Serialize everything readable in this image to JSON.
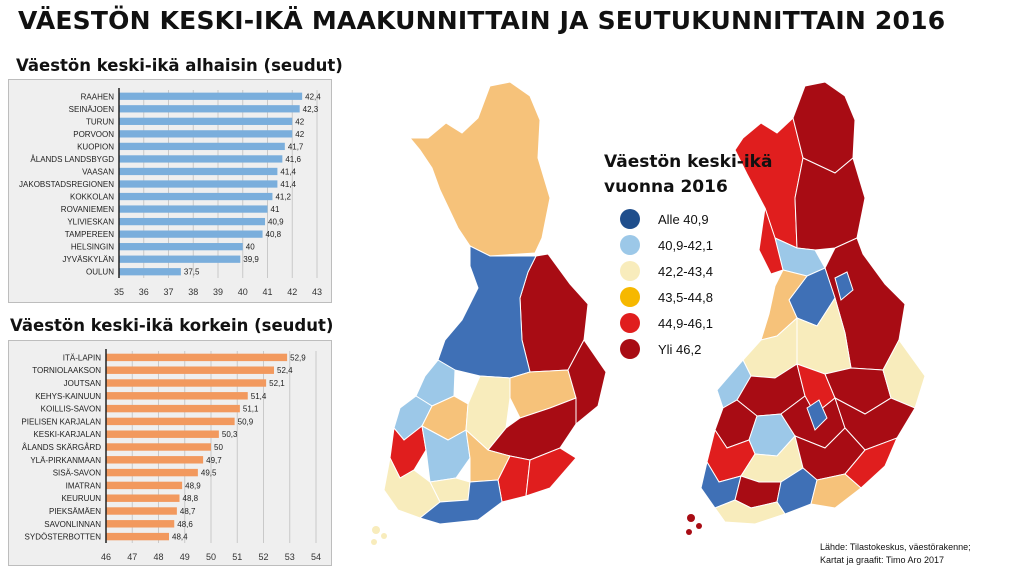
{
  "title": "VÄESTÖN KESKI-IKÄ MAAKUNNITTAIN JA SEUTUKUNNITTAIN 2016",
  "chart_data": [
    {
      "type": "bar",
      "orientation": "horizontal",
      "title": "Väestön keski-ikä alhaisin (seudut)",
      "categories": [
        "RAAHEN",
        "SEINÄJOEN",
        "TURUN",
        "PORVOON",
        "KUOPION",
        "ÅLANDS LANDSBYGD",
        "VAASAN",
        "JAKOBSTADSREGIONEN",
        "KOKKOLAN",
        "ROVANIEMEN",
        "YLIVIESKAN",
        "TAMPEREEN",
        "HELSINGIN",
        "JYVÄSKYLÄN",
        "OULUN"
      ],
      "values": [
        42.4,
        42.3,
        42,
        42,
        41.7,
        41.6,
        41.4,
        41.4,
        41.2,
        41,
        40.9,
        40.8,
        40,
        39.9,
        37.5
      ],
      "value_labels": [
        "42,4",
        "42,3",
        "42",
        "42",
        "41,7",
        "41,6",
        "41,4",
        "41,4",
        "41,2",
        "41",
        "40,9",
        "40,8",
        "40",
        "39,9",
        "37,5"
      ],
      "xlim": [
        35,
        43
      ],
      "ticks": [
        "35",
        "36",
        "37",
        "38",
        "39",
        "40",
        "41",
        "42",
        "43"
      ],
      "grid": true,
      "bar_color": "#7aaedc"
    },
    {
      "type": "bar",
      "orientation": "horizontal",
      "title": "Väestön keski-ikä korkein (seudut)",
      "categories": [
        "ITÄ-LAPIN",
        "TORNIOLAAKSON",
        "JOUTSAN",
        "KEHYS-KAINUUN",
        "KOILLIS-SAVON",
        "PIELISEN KARJALAN",
        "KESKI-KARJALAN",
        "ÅLANDS SKÄRGÅRD",
        "YLÄ-PIRKANMAAN",
        "SISÄ-SAVON",
        "IMATRAN",
        "KEURUUN",
        "PIEKSÄMÄEN",
        "SAVONLINNAN",
        "SYDÖSTERBOTTEN"
      ],
      "values": [
        52.9,
        52.4,
        52.1,
        51.4,
        51.1,
        50.9,
        50.3,
        50,
        49.7,
        49.5,
        48.9,
        48.8,
        48.7,
        48.6,
        48.4
      ],
      "value_labels": [
        "52,9",
        "52,4",
        "52,1",
        "51,4",
        "51,1",
        "50,9",
        "50,3",
        "50",
        "49,7",
        "49,5",
        "48,9",
        "48,8",
        "48,7",
        "48,6",
        "48,4"
      ],
      "xlim": [
        46,
        54
      ],
      "ticks": [
        "46",
        "47",
        "48",
        "49",
        "50",
        "51",
        "52",
        "53",
        "54"
      ],
      "grid": true,
      "bar_color": "#f2995e"
    }
  ],
  "legend": {
    "title_line1": "Väestön keski-ikä",
    "title_line2": "vuonna 2016",
    "items": [
      {
        "label": "Alle 40,9",
        "color": "#1f4e8c"
      },
      {
        "label": "40,9-42,1",
        "color": "#9cc8e8"
      },
      {
        "label": "42,2-43,4",
        "color": "#f8ecbc"
      },
      {
        "label": "43,5-44,8",
        "color": "#f6b800"
      },
      {
        "label": "44,9-46,1",
        "color": "#e01e1e"
      },
      {
        "label": "Yli 46,2",
        "color": "#a80c14"
      }
    ]
  },
  "maps": {
    "left_map": "finland-regions-map",
    "right_map": "finland-subregions-map"
  },
  "source": {
    "line1": "Lähde: Tilastokeskus, väestörakenne;",
    "line2": "Kartat ja graafit: Timo Aro 2017"
  }
}
